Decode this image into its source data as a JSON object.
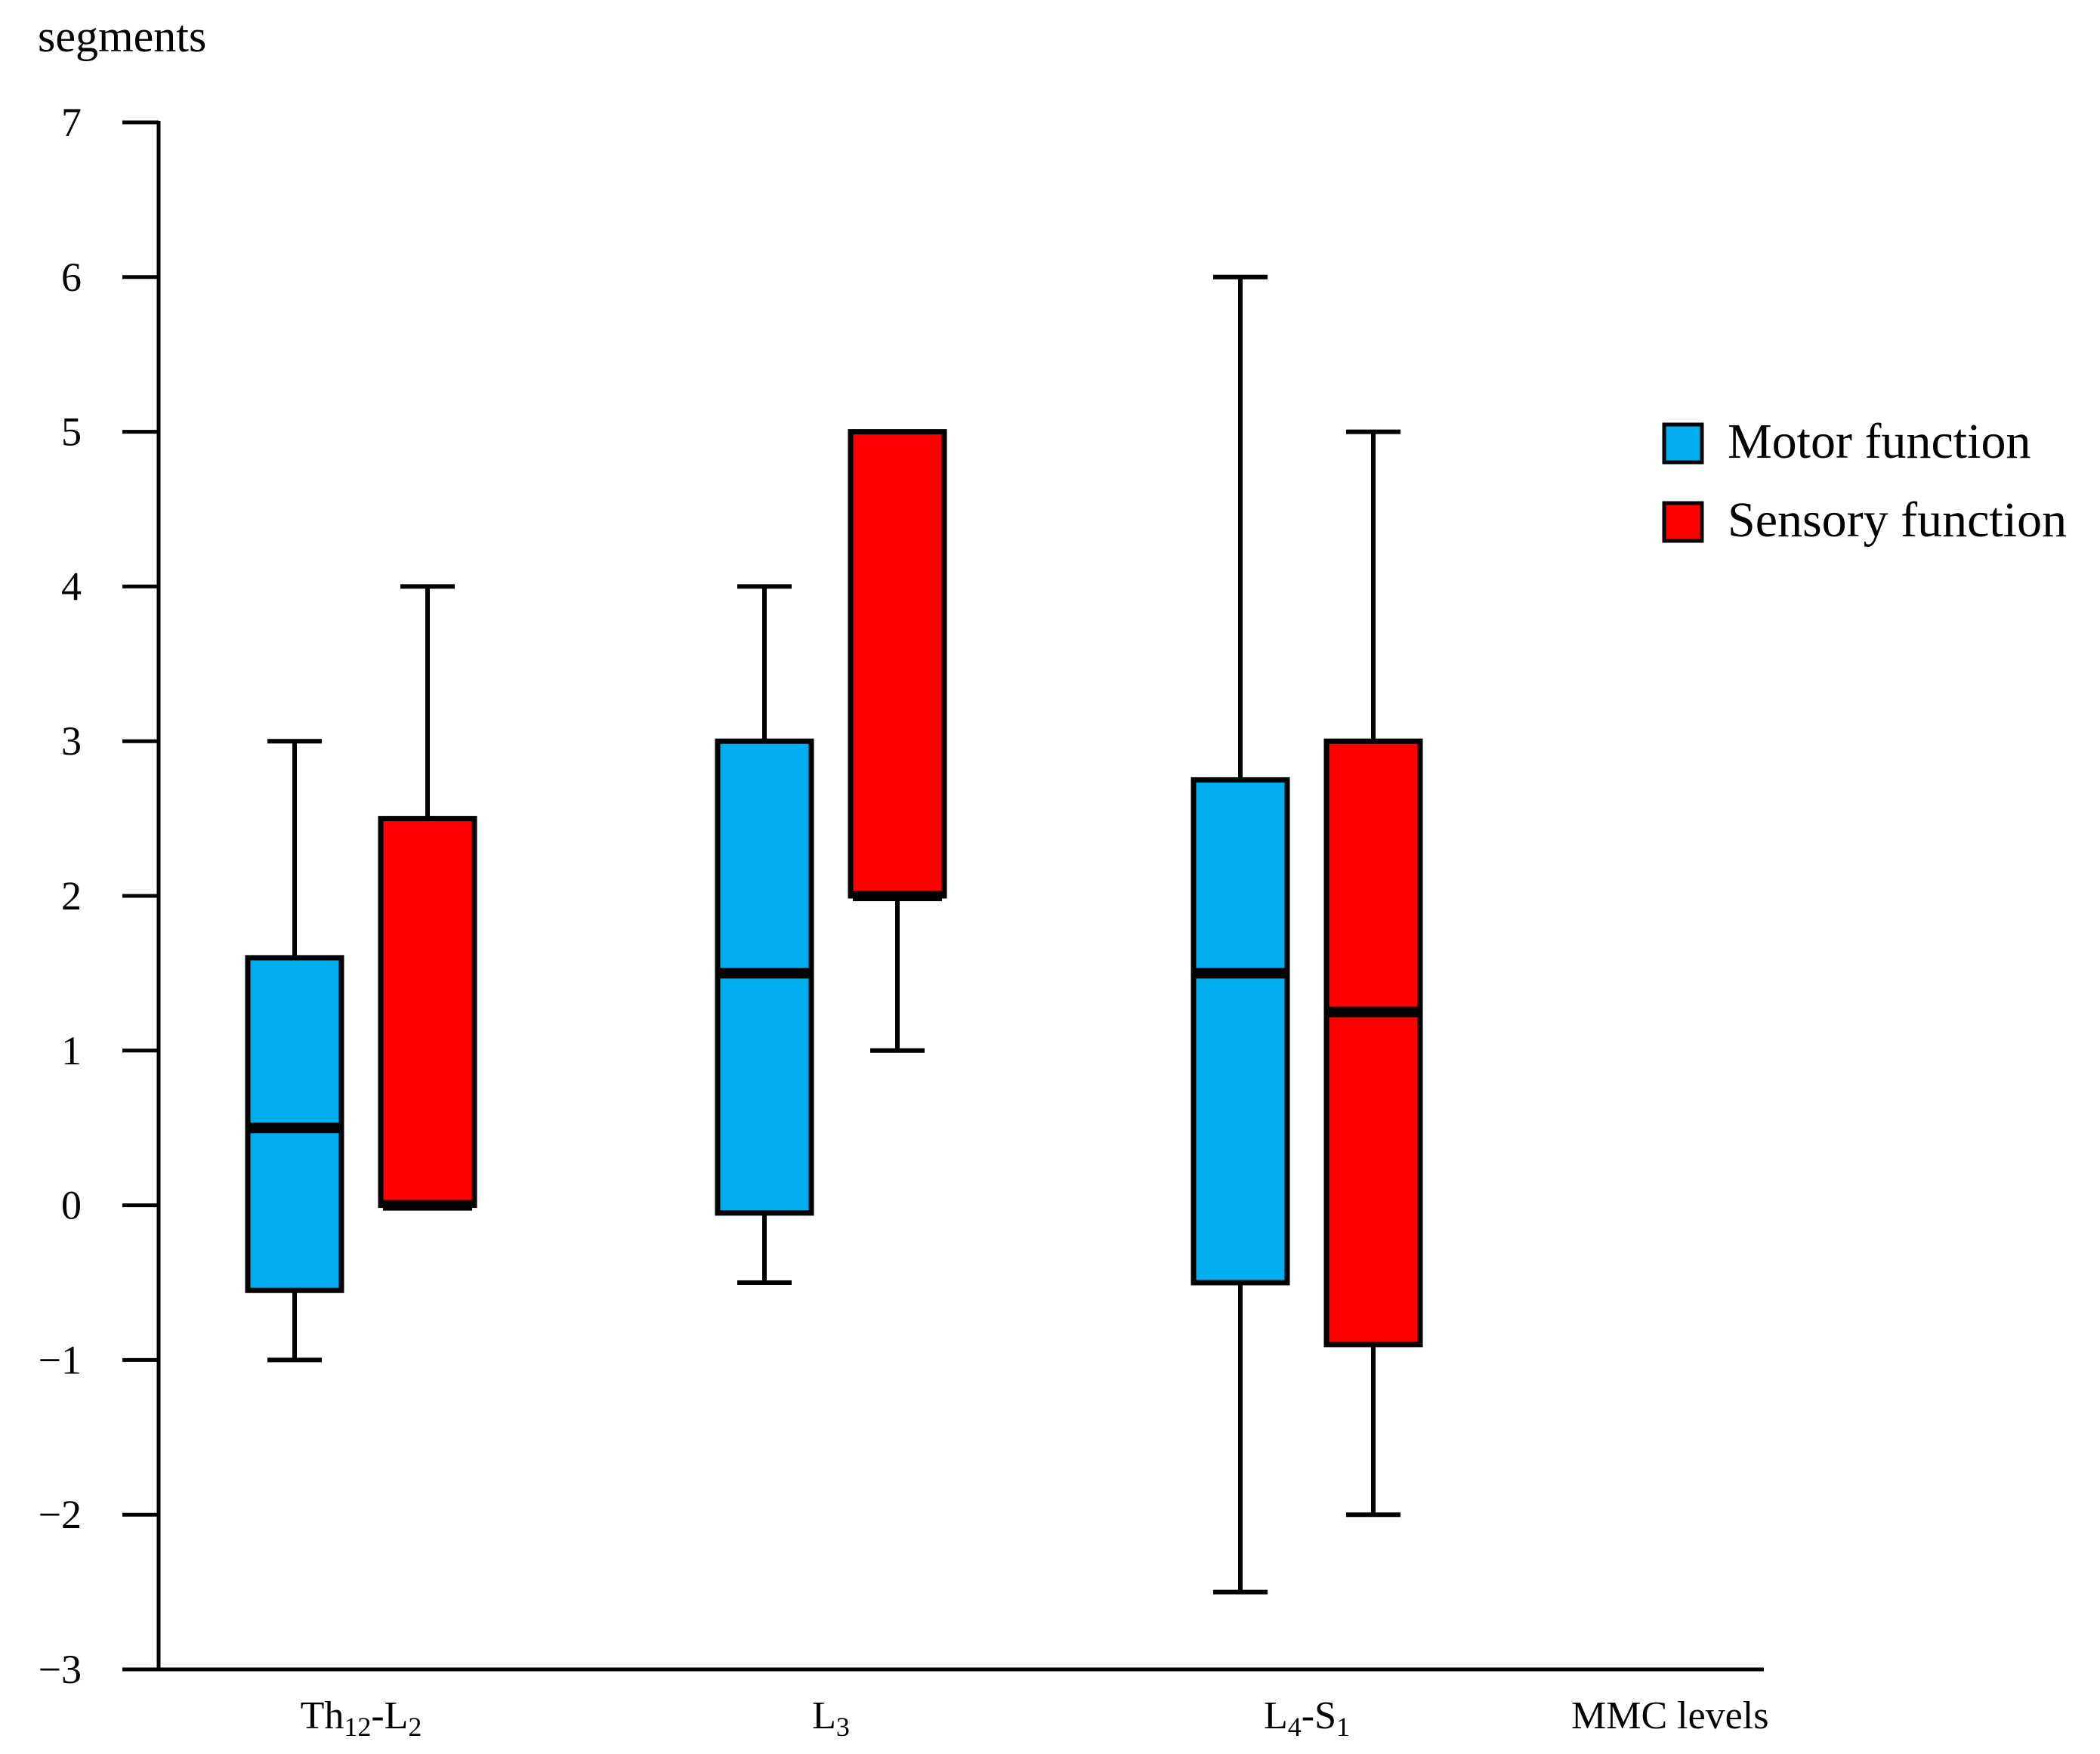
{
  "chart_data": {
    "type": "boxplot",
    "ylabel": "segments",
    "xlabel": "MMC levels",
    "ylim": [
      -3,
      7
    ],
    "yticks": [
      7,
      6,
      5,
      4,
      3,
      2,
      1,
      0,
      -1,
      -2,
      -3
    ],
    "ytick_labels": [
      "7",
      "6",
      "5",
      "4",
      "3",
      "2",
      "1",
      "0",
      "−1",
      "−2",
      "−3"
    ],
    "categories": [
      {
        "base": "Th",
        "sub1": "12",
        "mid": "-L",
        "sub2": "2"
      },
      {
        "base": "L",
        "sub1": "3",
        "mid": "",
        "sub2": ""
      },
      {
        "base": "L",
        "sub1": "4",
        "mid": "-S",
        "sub2": "1"
      }
    ],
    "legend_position": "right",
    "series": [
      {
        "name": "Motor function",
        "color": "#00AEEF",
        "boxes": [
          {
            "min": -1,
            "q1": -0.55,
            "median": 0.5,
            "q3": 1.6,
            "max": 3
          },
          {
            "min": -0.5,
            "q1": -0.05,
            "median": 1.5,
            "q3": 3,
            "max": 4
          },
          {
            "min": -2.5,
            "q1": -0.5,
            "median": 1.5,
            "q3": 2.75,
            "max": 6
          }
        ]
      },
      {
        "name": "Sensory function",
        "color": "#FF0000",
        "boxes": [
          {
            "min": 0,
            "q1": 0,
            "median": 0,
            "q3": 2.5,
            "max": 4
          },
          {
            "min": 1,
            "q1": 2,
            "median": 2,
            "q3": 5,
            "max": 5
          },
          {
            "min": -2,
            "q1": -0.9,
            "median": 1.25,
            "q3": 3,
            "max": 5
          }
        ]
      }
    ]
  }
}
